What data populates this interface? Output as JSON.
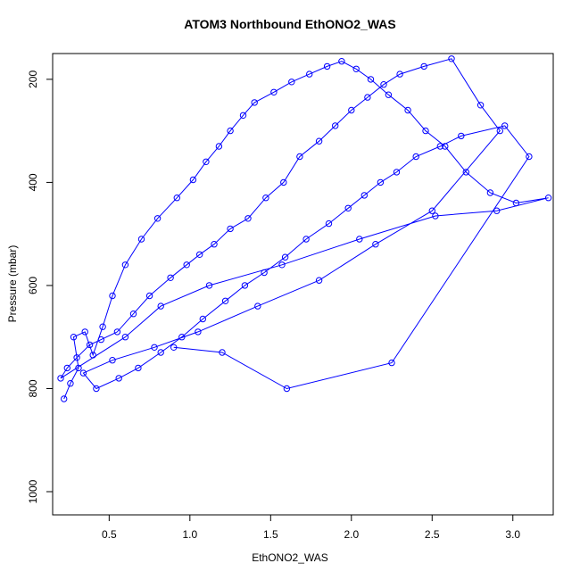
{
  "chart_data": {
    "type": "scatter",
    "title": "ATOM3 Northbound EthONO2_WAS",
    "xlabel": "EthONO2_WAS",
    "ylabel": "Pressure (mbar)",
    "xlim": [
      0.15,
      3.25
    ],
    "ylim": [
      1045,
      150
    ],
    "y_reversed": true,
    "x_ticks": [
      0.5,
      1.0,
      1.5,
      2.0,
      2.5,
      3.0
    ],
    "x_tick_labels": [
      "0.5",
      "1.0",
      "1.5",
      "2.0",
      "2.5",
      "3.0"
    ],
    "y_ticks": [
      200,
      400,
      600,
      800,
      1000
    ],
    "y_tick_labels": [
      "200",
      "400",
      "600",
      "800",
      "1000"
    ],
    "grid": false,
    "series": [
      {
        "marker": "open-circle",
        "line": true,
        "color": "#0000ff",
        "x": [
          0.22,
          0.26,
          0.31,
          0.28,
          0.35,
          0.4,
          0.46,
          0.52,
          0.6,
          0.7,
          0.8,
          0.92,
          1.02,
          1.1,
          1.18,
          1.25,
          1.33,
          1.4,
          1.52,
          1.63,
          1.74,
          1.85,
          1.94,
          2.03,
          2.12,
          2.23,
          2.35,
          2.46,
          2.58,
          2.71,
          2.86,
          3.02,
          3.22,
          2.9,
          2.52,
          2.05,
          1.57,
          1.12,
          0.82,
          0.6,
          0.2,
          0.24,
          0.3,
          0.38,
          0.45,
          0.55,
          0.65,
          0.75,
          0.88,
          0.98,
          1.06,
          1.15,
          1.25,
          1.36,
          1.47,
          1.58,
          1.68,
          1.8,
          1.9,
          2.0,
          2.1,
          2.2,
          2.3,
          2.45,
          2.62,
          2.8,
          2.92,
          2.5,
          2.15,
          1.8,
          1.42,
          1.05,
          0.78,
          0.52,
          0.34,
          0.42,
          0.56,
          0.68,
          0.82,
          0.95,
          1.08,
          1.22,
          1.34,
          1.46,
          1.59,
          1.72,
          1.86,
          1.98,
          2.08,
          2.18,
          2.28,
          2.4,
          2.55,
          2.68,
          2.95,
          3.1,
          2.25,
          1.6,
          1.2,
          0.9
        ],
        "y": [
          820,
          790,
          760,
          700,
          690,
          735,
          680,
          620,
          560,
          510,
          470,
          430,
          395,
          360,
          330,
          300,
          270,
          245,
          225,
          205,
          190,
          175,
          165,
          180,
          200,
          230,
          260,
          300,
          330,
          380,
          420,
          440,
          430,
          455,
          465,
          510,
          560,
          600,
          640,
          700,
          780,
          760,
          740,
          715,
          705,
          690,
          655,
          620,
          585,
          560,
          540,
          520,
          490,
          470,
          430,
          400,
          350,
          320,
          290,
          260,
          235,
          210,
          190,
          175,
          160,
          250,
          300,
          455,
          520,
          590,
          640,
          690,
          720,
          745,
          770,
          800,
          780,
          760,
          730,
          700,
          665,
          630,
          600,
          575,
          545,
          510,
          480,
          450,
          425,
          400,
          380,
          350,
          330,
          310,
          290,
          350,
          750,
          800,
          730,
          720
        ]
      }
    ]
  }
}
